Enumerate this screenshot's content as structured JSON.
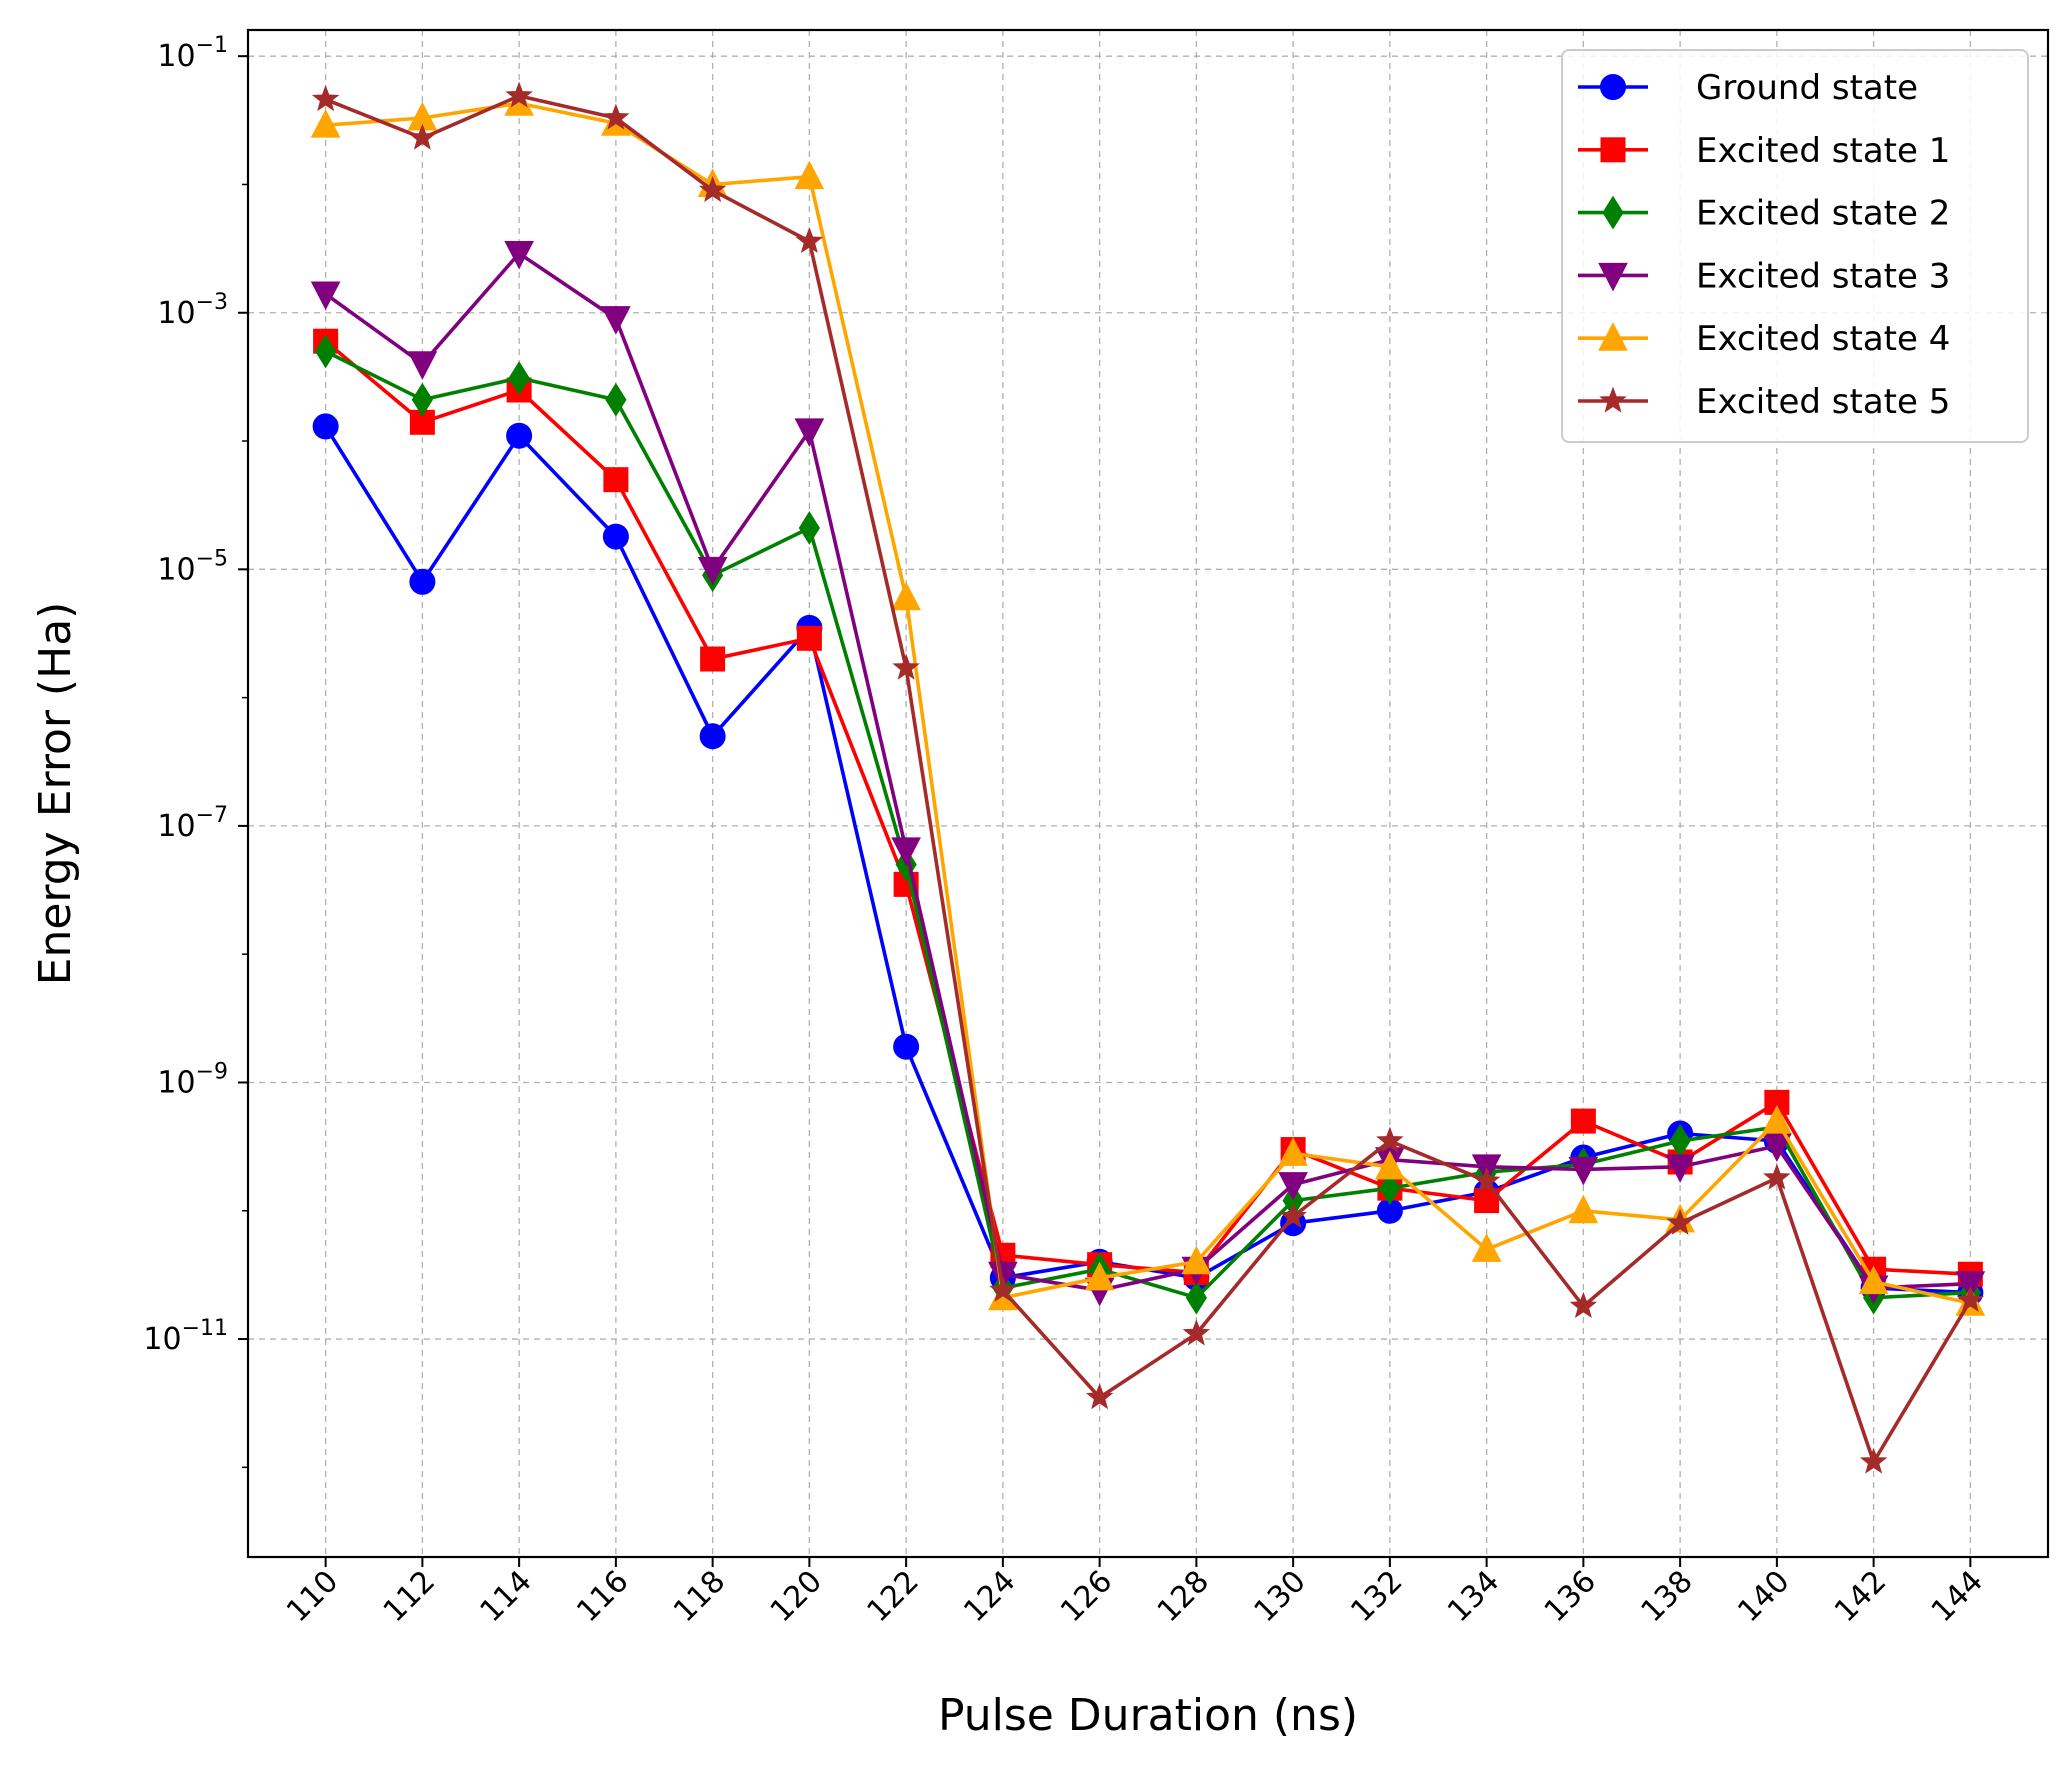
{
  "chart_data": {
    "type": "line",
    "title": "",
    "xlabel": "Pulse Duration (ns)",
    "ylabel": "Energy Error (Ha)",
    "yscale": "log",
    "ylim": [
      2e-13,
      0.16
    ],
    "grid": true,
    "legend_position": "top-right",
    "x": [
      110,
      112,
      114,
      116,
      118,
      120,
      122,
      124,
      126,
      128,
      130,
      132,
      134,
      136,
      138,
      140,
      142,
      144
    ],
    "y_ticks": [
      {
        "value": 0.1,
        "mantissa": "10",
        "exponent": "−1"
      },
      {
        "value": 0.001,
        "mantissa": "10",
        "exponent": "−3"
      },
      {
        "value": 1e-05,
        "mantissa": "10",
        "exponent": "−5"
      },
      {
        "value": 1e-07,
        "mantissa": "10",
        "exponent": "−7"
      },
      {
        "value": 1e-09,
        "mantissa": "10",
        "exponent": "−9"
      },
      {
        "value": 1e-11,
        "mantissa": "10",
        "exponent": "−11"
      }
    ],
    "series": [
      {
        "name": "Ground state",
        "color": "#0000ff",
        "marker": "circle",
        "values": [
          0.00013,
          8e-06,
          0.00011,
          1.8e-05,
          5e-07,
          3.5e-06,
          1.9e-09,
          3e-11,
          4e-11,
          3e-11,
          8e-11,
          1e-10,
          1.4e-10,
          2.6e-10,
          4e-10,
          3.5e-10,
          2.5e-11,
          2.3e-11
        ]
      },
      {
        "name": "Excited state 1",
        "color": "#ff0000",
        "marker": "square",
        "values": [
          0.0006,
          0.00014,
          0.00025,
          5e-05,
          2e-06,
          2.9e-06,
          3.5e-08,
          4.5e-11,
          3.8e-11,
          3.3e-11,
          3e-10,
          1.5e-10,
          1.2e-10,
          5e-10,
          2.4e-10,
          7e-10,
          3.5e-11,
          3.2e-11
        ]
      },
      {
        "name": "Excited state 2",
        "color": "#008000",
        "marker": "diamond",
        "values": [
          0.0005,
          0.00021,
          0.00031,
          0.00021,
          9e-06,
          2.1e-05,
          5e-08,
          2.5e-11,
          3.5e-11,
          2.1e-11,
          1.2e-10,
          1.5e-10,
          2e-10,
          2.3e-10,
          3.5e-10,
          4.5e-10,
          2.1e-11,
          2.3e-11
        ]
      },
      {
        "name": "Excited state 3",
        "color": "#800080",
        "marker": "triangle-down",
        "values": [
          0.0014,
          0.0004,
          0.0029,
          0.0009,
          1e-05,
          0.00012,
          6.5e-08,
          3.2e-11,
          2.4e-11,
          3.5e-11,
          1.6e-10,
          2.5e-10,
          2.2e-10,
          2.1e-10,
          2.2e-10,
          3.2e-10,
          2.5e-11,
          2.7e-11
        ]
      },
      {
        "name": "Excited state 4",
        "color": "#ffa500",
        "marker": "triangle-up",
        "values": [
          0.029,
          0.033,
          0.043,
          0.03,
          0.01,
          0.0115,
          6e-06,
          2.1e-11,
          3e-11,
          4e-11,
          2.8e-10,
          2.2e-10,
          5e-11,
          1e-10,
          8.5e-11,
          5e-10,
          2.8e-11,
          1.9e-11
        ]
      },
      {
        "name": "Excited state 5",
        "color": "#a52a2a",
        "marker": "star",
        "values": [
          0.046,
          0.023,
          0.049,
          0.033,
          0.009,
          0.0036,
          1.7e-06,
          2.4e-11,
          3.5e-12,
          1.1e-11,
          9e-11,
          3.5e-10,
          1.7e-10,
          1.8e-11,
          8e-11,
          1.8e-10,
          1.1e-12,
          2e-11
        ]
      }
    ]
  }
}
